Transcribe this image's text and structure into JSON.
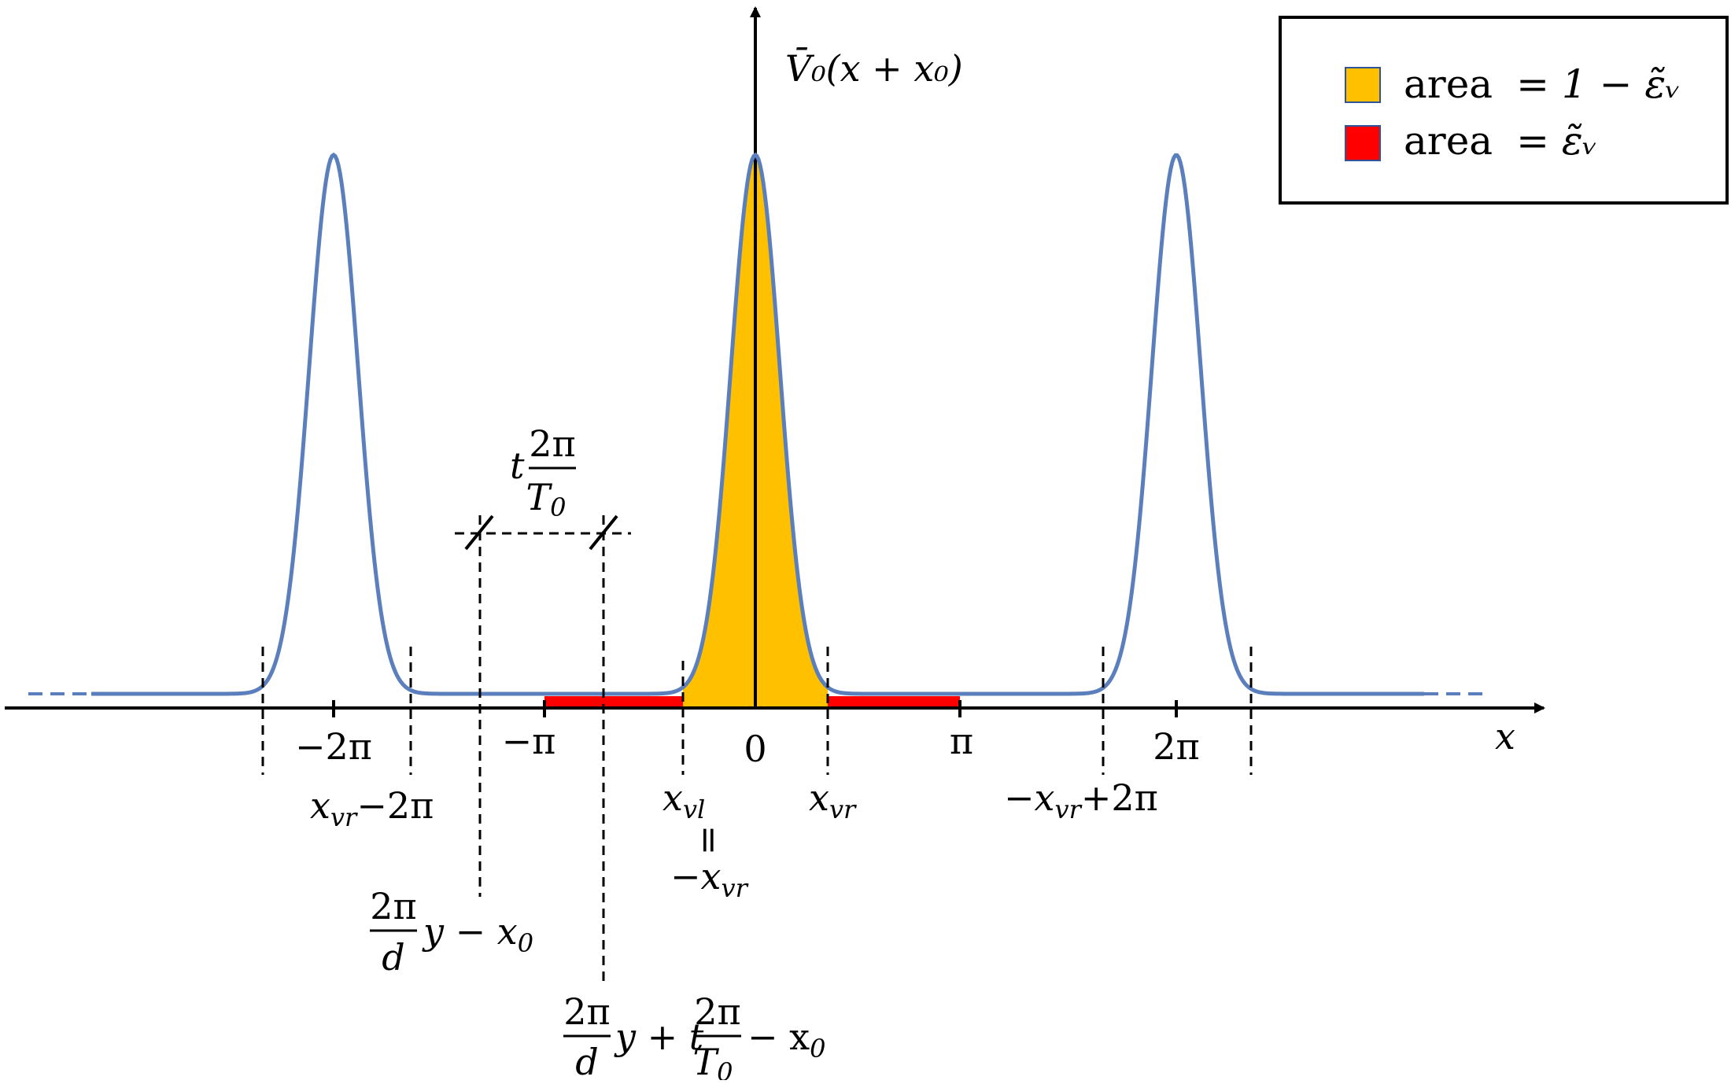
{
  "y_axis_label": "V̄₀(x + x₀)",
  "x_axis_label": "x",
  "legend": {
    "items": [
      {
        "swatch_color": "#FFC000",
        "label": "area",
        "value": "= 1 − ε̃ᵥ"
      },
      {
        "swatch_color": "#FF0000",
        "label": "area",
        "value": "= ε̃ᵥ"
      }
    ]
  },
  "colors": {
    "curve": "#5B7FBC",
    "fill_main": "#FFC000",
    "fill_tail": "#FF0000",
    "axis": "#000000"
  },
  "tick_labels": {
    "neg2pi": "−2π",
    "negpi": "−π",
    "zero": "0",
    "pi": "π",
    "pos2pi": "2π"
  },
  "markers": {
    "xvr_minus_2pi": {
      "base": "x",
      "sub": "vr",
      "rest": "−2π"
    },
    "xvl": {
      "base": "x",
      "sub": "vl"
    },
    "equals_vertical": "=",
    "neg_xvr": {
      "base": "−x",
      "sub": "vr"
    },
    "xvr": {
      "base": "x",
      "sub": "vr"
    },
    "neg_xvr_plus_2pi": {
      "base": "−x",
      "sub": "vr",
      "rest": "+2π"
    }
  },
  "shift_label": {
    "t": "t",
    "num": "2π",
    "den": "T",
    "den_sub": "0"
  },
  "expr_left": {
    "num": "2π",
    "den": "d",
    "rest": "y − x",
    "rest_sub": "0"
  },
  "expr_right": {
    "num": "2π",
    "den": "d",
    "mid": "y + t",
    "num2": "2π",
    "den2": "T",
    "den2_sub": "0",
    "rest": "− x",
    "rest_sub": "0"
  }
}
